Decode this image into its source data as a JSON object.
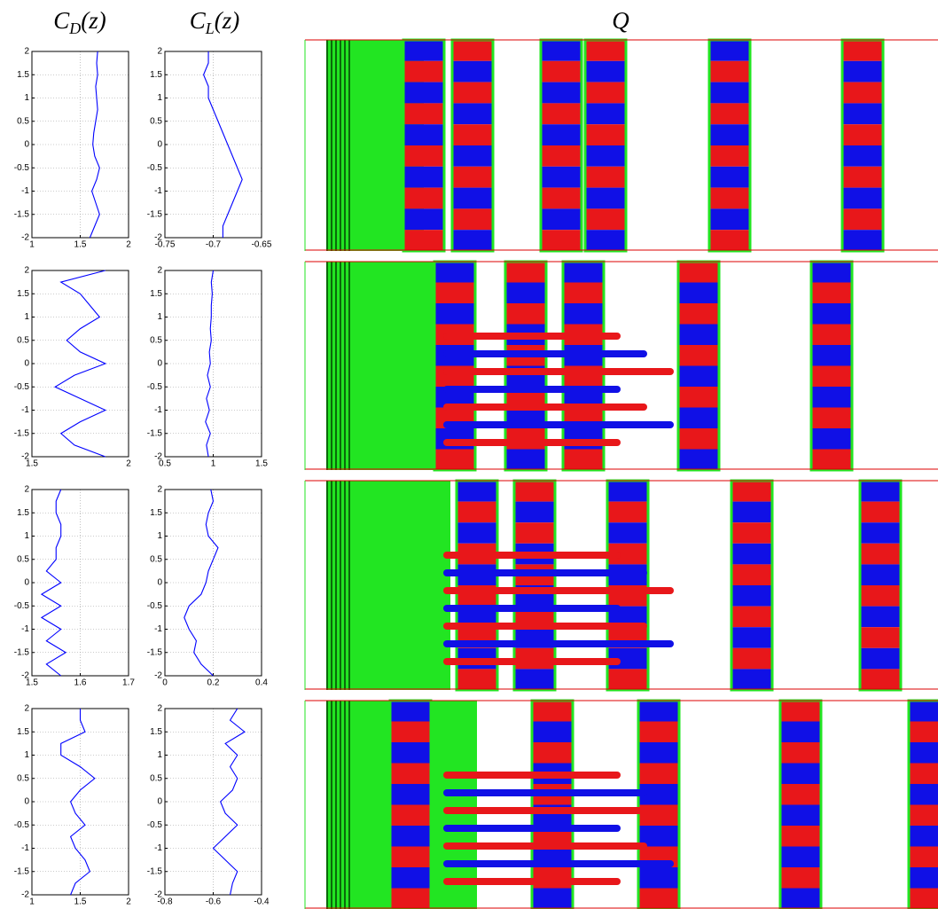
{
  "headers": [
    {
      "symbol": "C",
      "subscript": "D",
      "arg": "(z)"
    },
    {
      "symbol": "C",
      "subscript": "L",
      "arg": "(z)"
    },
    {
      "symbol": "Q"
    }
  ],
  "chart_data": [
    {
      "type": "line",
      "color": "#0000ff",
      "grid": true,
      "xlim": [
        1,
        2
      ],
      "xticks": [
        1,
        1.5,
        2
      ],
      "ylim": [
        -2,
        2
      ],
      "yticks": [
        -2,
        -1.5,
        -1,
        -0.5,
        0,
        0.5,
        1,
        1.5,
        2
      ],
      "z": [
        -2,
        -1.75,
        -1.5,
        -1.25,
        -1,
        -0.75,
        -0.5,
        -0.25,
        0,
        0.25,
        0.5,
        0.75,
        1,
        1.25,
        1.5,
        1.75,
        2
      ],
      "values": [
        1.6,
        1.65,
        1.7,
        1.66,
        1.62,
        1.67,
        1.7,
        1.65,
        1.63,
        1.64,
        1.66,
        1.68,
        1.67,
        1.66,
        1.68,
        1.67,
        1.68
      ]
    },
    {
      "type": "line",
      "color": "#0000ff",
      "grid": true,
      "xlim": [
        -0.75,
        -0.65
      ],
      "xticks": [
        -0.75,
        -0.7,
        -0.65
      ],
      "ylim": [
        -2,
        2
      ],
      "yticks": [
        -2,
        -1.5,
        -1,
        -0.5,
        0,
        0.5,
        1,
        1.5,
        2
      ],
      "z": [
        -2,
        -1.75,
        -1.5,
        -1.25,
        -1,
        -0.75,
        -0.5,
        -0.25,
        0,
        0.25,
        0.5,
        0.75,
        1,
        1.25,
        1.5,
        1.75,
        2
      ],
      "values": [
        -0.69,
        -0.69,
        -0.685,
        -0.68,
        -0.675,
        -0.67,
        -0.675,
        -0.68,
        -0.685,
        -0.69,
        -0.695,
        -0.7,
        -0.705,
        -0.705,
        -0.71,
        -0.705,
        -0.705
      ]
    },
    {
      "type": "line",
      "color": "#0000ff",
      "grid": true,
      "xlim": [
        1.5,
        2
      ],
      "xticks": [
        1.5,
        2
      ],
      "ylim": [
        -2,
        2
      ],
      "yticks": [
        -2,
        -1.5,
        -1,
        -0.5,
        0,
        0.5,
        1,
        1.5,
        2
      ],
      "z": [
        -2,
        -1.75,
        -1.5,
        -1.25,
        -1,
        -0.75,
        -0.5,
        -0.25,
        0,
        0.25,
        0.5,
        0.75,
        1,
        1.25,
        1.5,
        1.75,
        2
      ],
      "values": [
        1.88,
        1.72,
        1.65,
        1.75,
        1.88,
        1.75,
        1.62,
        1.72,
        1.88,
        1.75,
        1.68,
        1.75,
        1.85,
        1.8,
        1.75,
        1.65,
        1.88
      ]
    },
    {
      "type": "line",
      "color": "#0000ff",
      "grid": true,
      "xlim": [
        0.5,
        1.5
      ],
      "xticks": [
        0.5,
        1,
        1.5
      ],
      "ylim": [
        -2,
        2
      ],
      "yticks": [
        -2,
        -1.5,
        -1,
        -0.5,
        0,
        0.5,
        1,
        1.5,
        2
      ],
      "z": [
        -2,
        -1.75,
        -1.5,
        -1.25,
        -1,
        -0.75,
        -0.5,
        -0.25,
        0,
        0.25,
        0.5,
        0.75,
        1,
        1.25,
        1.5,
        1.75,
        2
      ],
      "values": [
        0.95,
        0.93,
        0.97,
        0.92,
        0.96,
        0.93,
        0.97,
        0.94,
        0.97,
        0.96,
        0.98,
        0.97,
        0.98,
        0.98,
        0.99,
        0.98,
        1.0
      ]
    },
    {
      "type": "line",
      "color": "#0000ff",
      "grid": true,
      "xlim": [
        1.5,
        1.7
      ],
      "xticks": [
        1.5,
        1.6,
        1.7
      ],
      "ylim": [
        -2,
        2
      ],
      "yticks": [
        -2,
        -1.5,
        -1,
        -0.5,
        0,
        0.5,
        1,
        1.5,
        2
      ],
      "z": [
        -2,
        -1.75,
        -1.5,
        -1.25,
        -1,
        -0.75,
        -0.5,
        -0.25,
        0,
        0.25,
        0.5,
        0.75,
        1,
        1.25,
        1.5,
        1.75,
        2
      ],
      "values": [
        1.56,
        1.53,
        1.57,
        1.53,
        1.56,
        1.52,
        1.56,
        1.52,
        1.56,
        1.53,
        1.55,
        1.55,
        1.56,
        1.56,
        1.55,
        1.55,
        1.56
      ]
    },
    {
      "type": "line",
      "color": "#0000ff",
      "grid": true,
      "xlim": [
        0,
        0.4
      ],
      "xticks": [
        0,
        0.2,
        0.4
      ],
      "ylim": [
        -2,
        2
      ],
      "yticks": [
        -2,
        -1.5,
        -1,
        -0.5,
        0,
        0.5,
        1,
        1.5,
        2
      ],
      "z": [
        -2,
        -1.75,
        -1.5,
        -1.25,
        -1,
        -0.75,
        -0.5,
        -0.25,
        0,
        0.25,
        0.5,
        0.75,
        1,
        1.25,
        1.5,
        1.75,
        2
      ],
      "values": [
        0.2,
        0.15,
        0.12,
        0.13,
        0.1,
        0.08,
        0.1,
        0.15,
        0.17,
        0.18,
        0.2,
        0.22,
        0.18,
        0.17,
        0.18,
        0.2,
        0.19
      ]
    },
    {
      "type": "line",
      "color": "#0000ff",
      "grid": true,
      "xlim": [
        1,
        2
      ],
      "xticks": [
        1,
        1.5,
        2
      ],
      "ylim": [
        -2,
        2
      ],
      "yticks": [
        -2,
        -1.5,
        -1,
        -0.5,
        0,
        0.5,
        1,
        1.5,
        2
      ],
      "z": [
        -2,
        -1.75,
        -1.5,
        -1.25,
        -1,
        -0.75,
        -0.5,
        -0.25,
        0,
        0.25,
        0.5,
        0.75,
        1,
        1.25,
        1.5,
        1.75,
        2
      ],
      "values": [
        1.4,
        1.45,
        1.6,
        1.55,
        1.45,
        1.4,
        1.55,
        1.45,
        1.4,
        1.5,
        1.65,
        1.5,
        1.3,
        1.3,
        1.55,
        1.5,
        1.5
      ]
    },
    {
      "type": "line",
      "color": "#0000ff",
      "grid": true,
      "xlim": [
        -0.8,
        -0.4
      ],
      "xticks": [
        -0.8,
        -0.6,
        -0.4
      ],
      "ylim": [
        -2,
        2
      ],
      "yticks": [
        -2,
        -1.5,
        -1,
        -0.5,
        0,
        0.5,
        1,
        1.5,
        2
      ],
      "z": [
        -2,
        -1.75,
        -1.5,
        -1.25,
        -1,
        -0.75,
        -0.5,
        -0.25,
        0,
        0.25,
        0.5,
        0.75,
        1,
        1.25,
        1.5,
        1.75,
        2
      ],
      "values": [
        -0.53,
        -0.52,
        -0.5,
        -0.55,
        -0.6,
        -0.55,
        -0.5,
        -0.55,
        -0.57,
        -0.52,
        -0.5,
        -0.53,
        -0.5,
        -0.55,
        -0.47,
        -0.53,
        -0.5
      ]
    }
  ]
}
